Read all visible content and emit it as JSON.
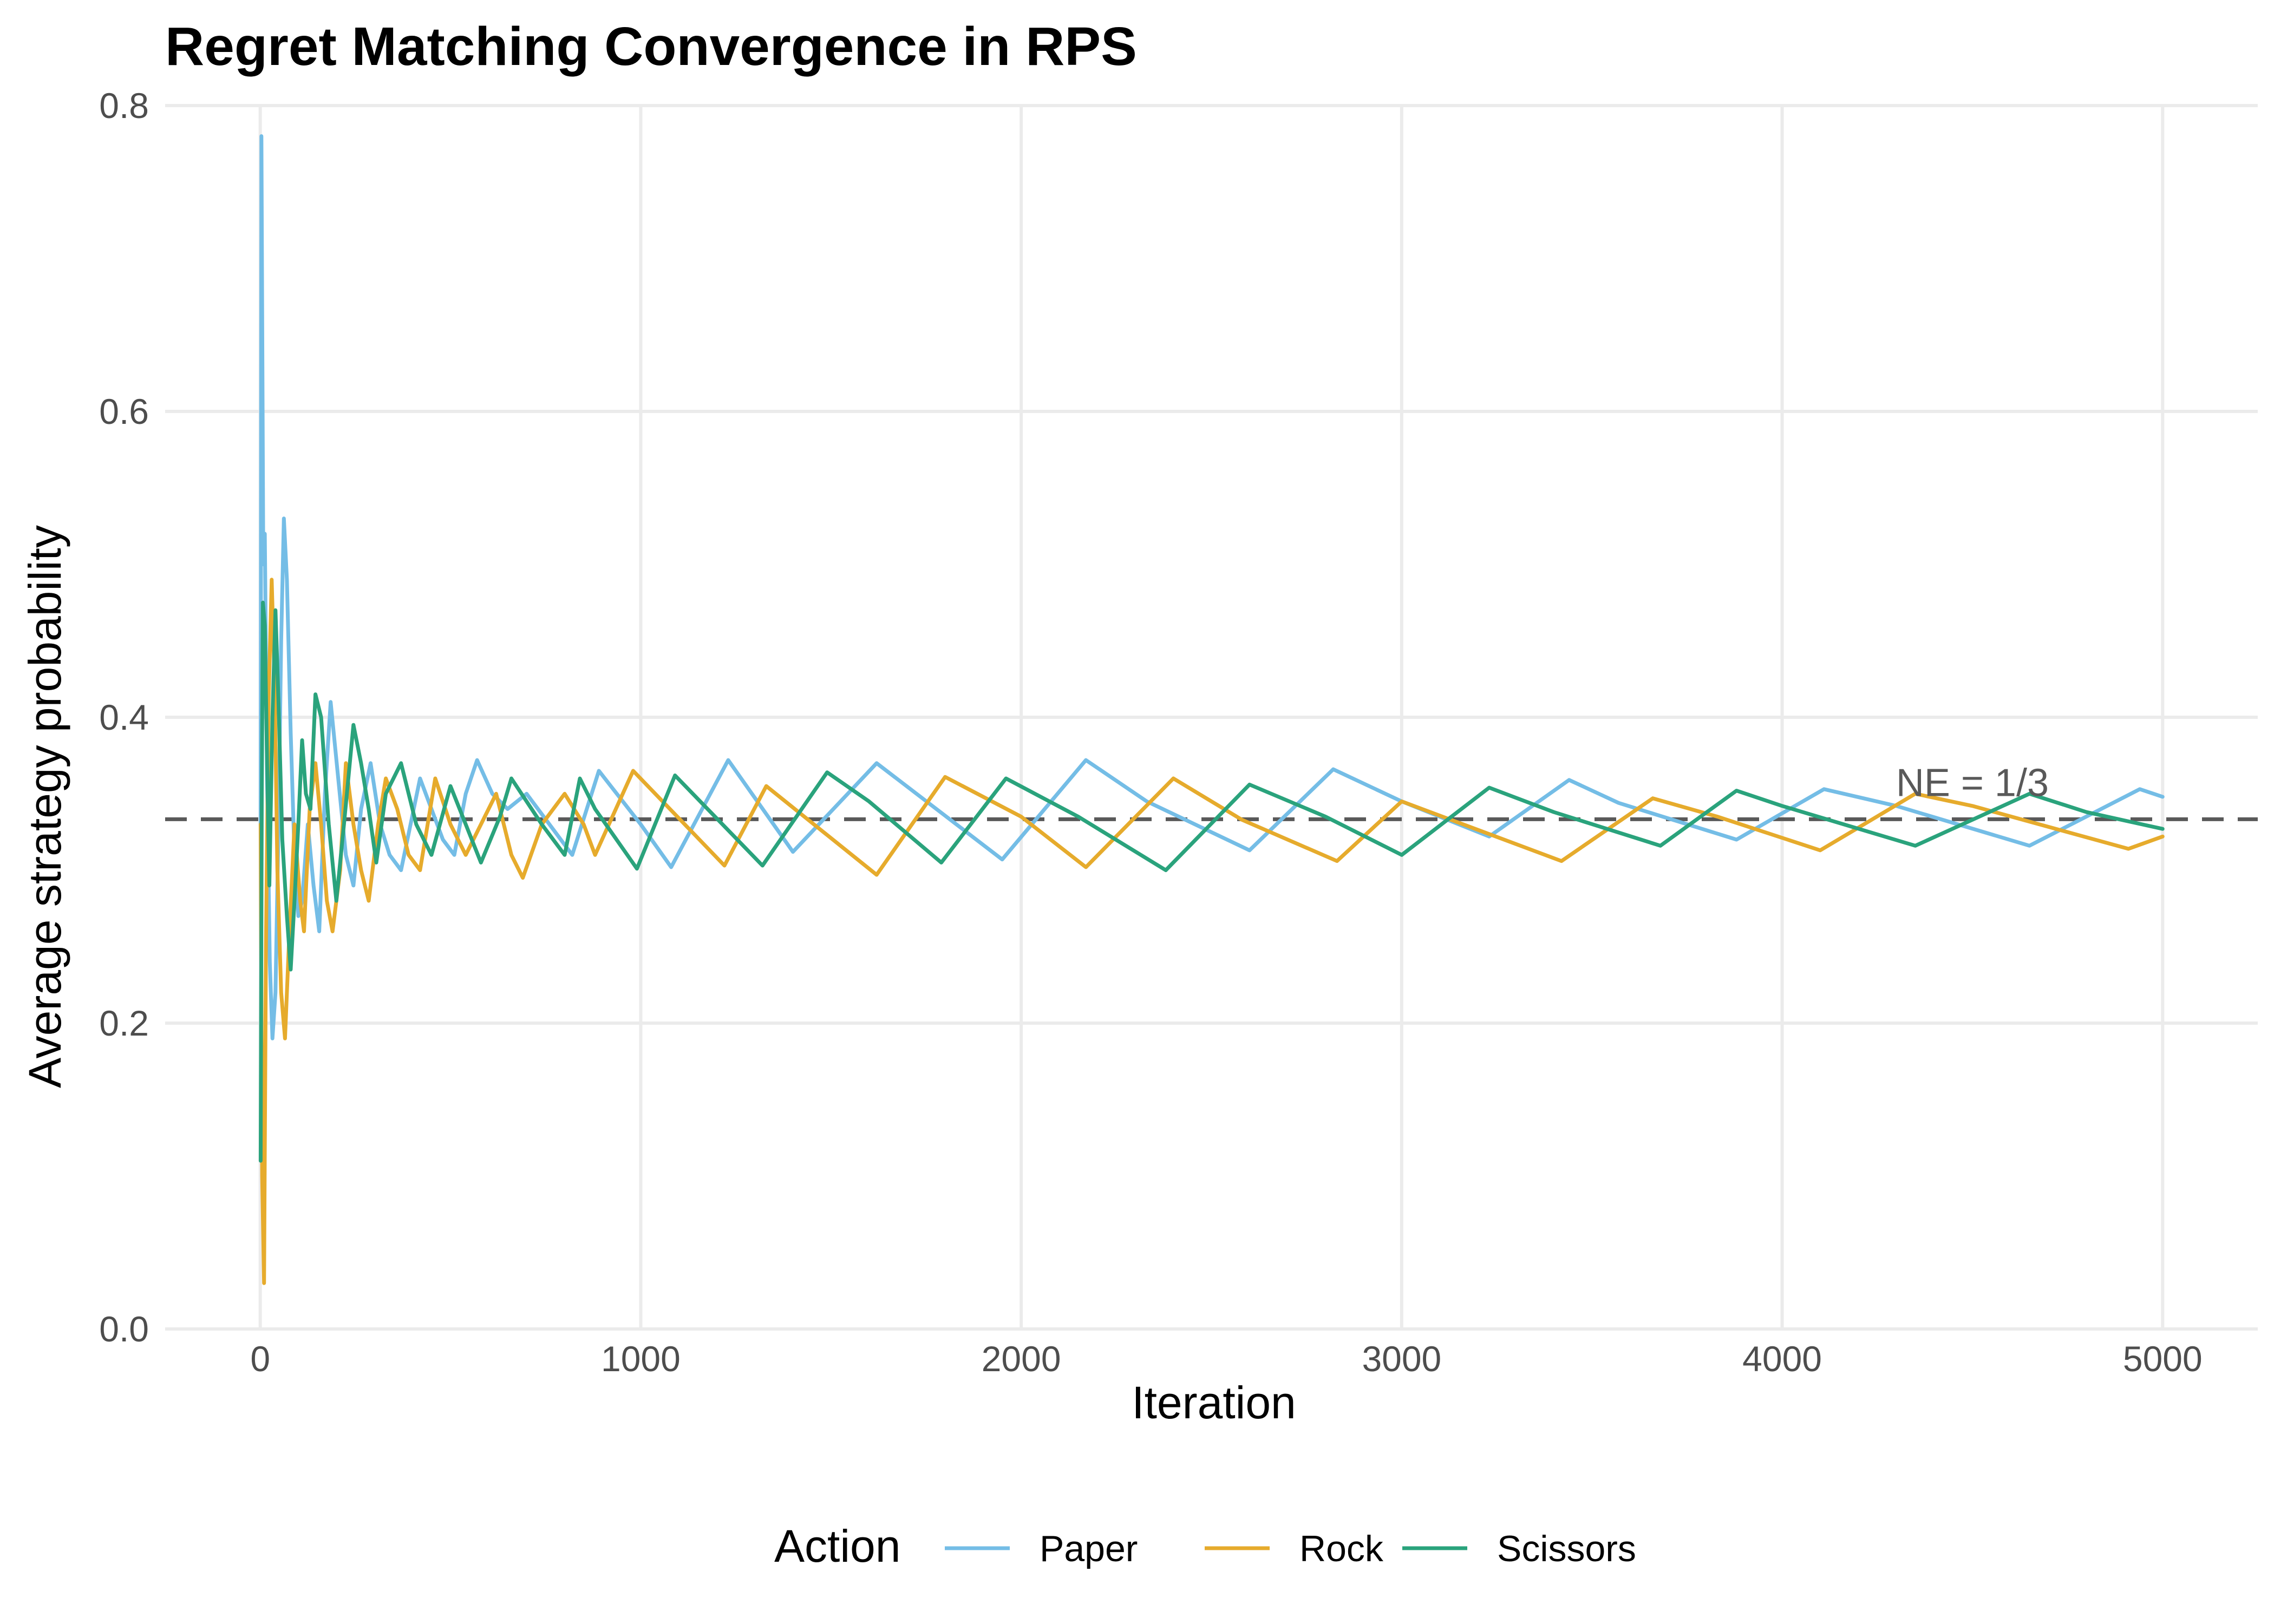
{
  "chart_data": {
    "type": "line",
    "title": "Regret Matching Convergence in RPS",
    "xlabel": "Iteration",
    "ylabel": "Average strategy probability",
    "xlim": [
      -250,
      5250
    ],
    "ylim": [
      0,
      0.8
    ],
    "x_ticks": [
      0,
      1000,
      2000,
      3000,
      4000,
      5000
    ],
    "y_ticks": [
      0.0,
      0.2,
      0.4,
      0.6,
      0.8
    ],
    "x_tick_labels": [
      "0",
      "1000",
      "2000",
      "3000",
      "4000",
      "5000"
    ],
    "y_tick_labels": [
      "0.0",
      "0.2",
      "0.4",
      "0.6",
      "0.8"
    ],
    "grid": true,
    "legend": {
      "title": "Action",
      "position": "bottom"
    },
    "reference_line": {
      "y": 0.3333,
      "style": "dashed",
      "color": "#595959",
      "label": "NE = 1/3",
      "label_x": 4500,
      "label_y": 0.357
    },
    "series": [
      {
        "name": "Paper",
        "color": "#74BDE6",
        "points": [
          [
            1,
            0.33
          ],
          [
            3,
            0.78
          ],
          [
            8,
            0.5
          ],
          [
            12,
            0.52
          ],
          [
            18,
            0.36
          ],
          [
            25,
            0.24
          ],
          [
            32,
            0.19
          ],
          [
            40,
            0.22
          ],
          [
            48,
            0.33
          ],
          [
            55,
            0.45
          ],
          [
            62,
            0.53
          ],
          [
            70,
            0.49
          ],
          [
            80,
            0.39
          ],
          [
            90,
            0.31
          ],
          [
            100,
            0.27
          ],
          [
            110,
            0.28
          ],
          [
            125,
            0.33
          ],
          [
            140,
            0.29
          ],
          [
            155,
            0.26
          ],
          [
            170,
            0.35
          ],
          [
            185,
            0.41
          ],
          [
            205,
            0.36
          ],
          [
            225,
            0.31
          ],
          [
            245,
            0.29
          ],
          [
            265,
            0.34
          ],
          [
            290,
            0.37
          ],
          [
            315,
            0.33
          ],
          [
            340,
            0.31
          ],
          [
            370,
            0.3
          ],
          [
            395,
            0.33
          ],
          [
            420,
            0.36
          ],
          [
            450,
            0.34
          ],
          [
            480,
            0.32
          ],
          [
            510,
            0.31
          ],
          [
            540,
            0.35
          ],
          [
            570,
            0.372
          ],
          [
            610,
            0.35
          ],
          [
            650,
            0.34
          ],
          [
            700,
            0.35
          ],
          [
            760,
            0.33
          ],
          [
            820,
            0.31
          ],
          [
            890,
            0.365
          ],
          [
            1000,
            0.33
          ],
          [
            1080,
            0.302
          ],
          [
            1230,
            0.372
          ],
          [
            1400,
            0.312
          ],
          [
            1620,
            0.37
          ],
          [
            1950,
            0.307
          ],
          [
            2170,
            0.372
          ],
          [
            2330,
            0.345
          ],
          [
            2600,
            0.313
          ],
          [
            2820,
            0.366
          ],
          [
            3000,
            0.345
          ],
          [
            3230,
            0.322
          ],
          [
            3440,
            0.359
          ],
          [
            3570,
            0.344
          ],
          [
            3880,
            0.32
          ],
          [
            4110,
            0.353
          ],
          [
            4300,
            0.342
          ],
          [
            4650,
            0.316
          ],
          [
            4940,
            0.353
          ],
          [
            5000,
            0.348
          ]
        ]
      },
      {
        "name": "Rock",
        "color": "#E6AB2C",
        "points": [
          [
            1,
            0.33
          ],
          [
            5,
            0.1
          ],
          [
            10,
            0.03
          ],
          [
            15,
            0.25
          ],
          [
            22,
            0.41
          ],
          [
            30,
            0.49
          ],
          [
            38,
            0.42
          ],
          [
            45,
            0.3
          ],
          [
            55,
            0.22
          ],
          [
            65,
            0.19
          ],
          [
            75,
            0.25
          ],
          [
            90,
            0.33
          ],
          [
            105,
            0.28
          ],
          [
            115,
            0.26
          ],
          [
            130,
            0.34
          ],
          [
            145,
            0.37
          ],
          [
            160,
            0.33
          ],
          [
            175,
            0.28
          ],
          [
            190,
            0.26
          ],
          [
            210,
            0.3
          ],
          [
            225,
            0.37
          ],
          [
            245,
            0.33
          ],
          [
            265,
            0.3
          ],
          [
            285,
            0.28
          ],
          [
            310,
            0.33
          ],
          [
            330,
            0.36
          ],
          [
            360,
            0.34
          ],
          [
            390,
            0.31
          ],
          [
            420,
            0.3
          ],
          [
            460,
            0.36
          ],
          [
            500,
            0.33
          ],
          [
            540,
            0.31
          ],
          [
            580,
            0.33
          ],
          [
            620,
            0.35
          ],
          [
            660,
            0.31
          ],
          [
            690,
            0.295
          ],
          [
            740,
            0.33
          ],
          [
            800,
            0.35
          ],
          [
            850,
            0.33
          ],
          [
            880,
            0.31
          ],
          [
            980,
            0.365
          ],
          [
            1220,
            0.303
          ],
          [
            1330,
            0.355
          ],
          [
            1620,
            0.297
          ],
          [
            1800,
            0.361
          ],
          [
            2000,
            0.335
          ],
          [
            2170,
            0.302
          ],
          [
            2400,
            0.36
          ],
          [
            2580,
            0.333
          ],
          [
            2830,
            0.306
          ],
          [
            3000,
            0.345
          ],
          [
            3420,
            0.306
          ],
          [
            3660,
            0.347
          ],
          [
            3830,
            0.335
          ],
          [
            4100,
            0.313
          ],
          [
            4350,
            0.35
          ],
          [
            4500,
            0.342
          ],
          [
            4910,
            0.314
          ],
          [
            5000,
            0.322
          ]
        ]
      },
      {
        "name": "Scissors",
        "color": "#2AA37C",
        "points": [
          [
            1,
            0.11
          ],
          [
            4,
            0.35
          ],
          [
            7,
            0.475
          ],
          [
            12,
            0.46
          ],
          [
            18,
            0.37
          ],
          [
            24,
            0.29
          ],
          [
            32,
            0.4
          ],
          [
            40,
            0.47
          ],
          [
            48,
            0.41
          ],
          [
            58,
            0.32
          ],
          [
            70,
            0.27
          ],
          [
            80,
            0.235
          ],
          [
            90,
            0.28
          ],
          [
            100,
            0.33
          ],
          [
            110,
            0.385
          ],
          [
            120,
            0.35
          ],
          [
            132,
            0.34
          ],
          [
            145,
            0.415
          ],
          [
            160,
            0.4
          ],
          [
            180,
            0.33
          ],
          [
            200,
            0.28
          ],
          [
            220,
            0.33
          ],
          [
            245,
            0.395
          ],
          [
            265,
            0.37
          ],
          [
            285,
            0.34
          ],
          [
            305,
            0.305
          ],
          [
            330,
            0.35
          ],
          [
            370,
            0.37
          ],
          [
            410,
            0.33
          ],
          [
            450,
            0.31
          ],
          [
            500,
            0.355
          ],
          [
            540,
            0.33
          ],
          [
            580,
            0.305
          ],
          [
            630,
            0.335
          ],
          [
            660,
            0.36
          ],
          [
            700,
            0.345
          ],
          [
            740,
            0.33
          ],
          [
            800,
            0.31
          ],
          [
            840,
            0.36
          ],
          [
            880,
            0.34
          ],
          [
            990,
            0.301
          ],
          [
            1090,
            0.362
          ],
          [
            1320,
            0.303
          ],
          [
            1490,
            0.364
          ],
          [
            1600,
            0.345
          ],
          [
            1790,
            0.305
          ],
          [
            1960,
            0.36
          ],
          [
            2150,
            0.335
          ],
          [
            2380,
            0.3
          ],
          [
            2600,
            0.356
          ],
          [
            2800,
            0.335
          ],
          [
            3000,
            0.31
          ],
          [
            3230,
            0.354
          ],
          [
            3400,
            0.338
          ],
          [
            3680,
            0.316
          ],
          [
            3880,
            0.352
          ],
          [
            4000,
            0.342
          ],
          [
            4350,
            0.316
          ],
          [
            4650,
            0.35
          ],
          [
            4800,
            0.338
          ],
          [
            5000,
            0.327
          ]
        ]
      }
    ]
  }
}
